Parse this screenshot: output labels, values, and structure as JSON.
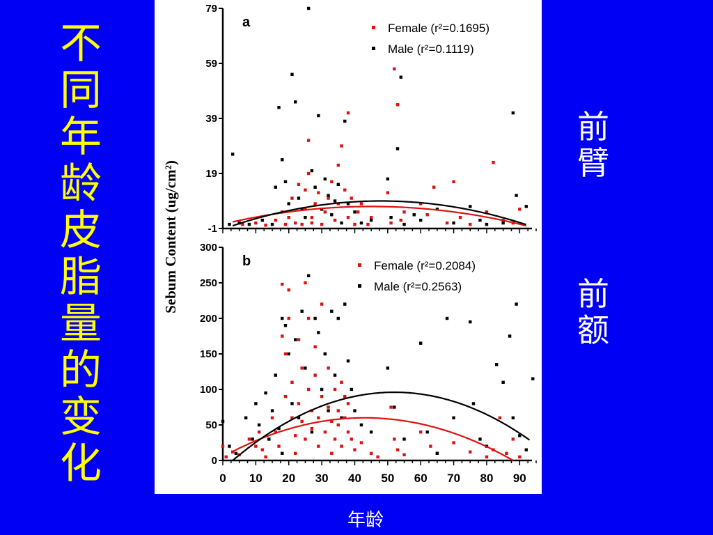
{
  "slide": {
    "title_vertical": "不同年龄皮脂量的变化",
    "side_label_1": "前臂",
    "side_label_2": "前额",
    "bottom_label": "年龄"
  },
  "colors": {
    "background": "#0000f5",
    "title": "#ffff00",
    "female": "#e01010",
    "male": "#000000"
  },
  "chart_data": [
    {
      "type": "scatter",
      "panel_label": "a",
      "ylabel": "Sebum Content (ug/cm²)",
      "ylim": [
        -1,
        79
      ],
      "yticks": [
        -1,
        19,
        39,
        59,
        79
      ],
      "xlim": [
        0,
        95
      ],
      "grid": false,
      "legend_placement": "top-right",
      "series": [
        {
          "name": "Female",
          "legend_label": "Female (r²=0.1695)",
          "color": "#e01010",
          "fit": {
            "x_start": 3,
            "x_end": 92,
            "peak_x": 45,
            "peak_y": 7
          },
          "points": [
            [
              6,
              0.5
            ],
            [
              10,
              1
            ],
            [
              13,
              0.2
            ],
            [
              16,
              2
            ],
            [
              18,
              5
            ],
            [
              19,
              0.5
            ],
            [
              20,
              3
            ],
            [
              21,
              10
            ],
            [
              22,
              1
            ],
            [
              23,
              15
            ],
            [
              24,
              0.5
            ],
            [
              25,
              6
            ],
            [
              25,
              13
            ],
            [
              26,
              31
            ],
            [
              26,
              19
            ],
            [
              27,
              3
            ],
            [
              27,
              1
            ],
            [
              28,
              8
            ],
            [
              29,
              12
            ],
            [
              30,
              0.5
            ],
            [
              31,
              5
            ],
            [
              32,
              10
            ],
            [
              33,
              16
            ],
            [
              34,
              2
            ],
            [
              35,
              22
            ],
            [
              35,
              8
            ],
            [
              36,
              29
            ],
            [
              37,
              13
            ],
            [
              38,
              41
            ],
            [
              38,
              3
            ],
            [
              39,
              10
            ],
            [
              40,
              0.5
            ],
            [
              41,
              5
            ],
            [
              42,
              8
            ],
            [
              44,
              0.5
            ],
            [
              45,
              3
            ],
            [
              50,
              12
            ],
            [
              51,
              1
            ],
            [
              52,
              57
            ],
            [
              53,
              44
            ],
            [
              54,
              2
            ],
            [
              55,
              5
            ],
            [
              60,
              8
            ],
            [
              62,
              4
            ],
            [
              64,
              14
            ],
            [
              68,
              1
            ],
            [
              70,
              16
            ],
            [
              72,
              3
            ],
            [
              75,
              0.5
            ],
            [
              80,
              5
            ],
            [
              82,
              23
            ],
            [
              85,
              2
            ],
            [
              88,
              1
            ],
            [
              90,
              6
            ]
          ]
        },
        {
          "name": "Male",
          "legend_label": "Male (r²=0.1119)",
          "color": "#000000",
          "fit": {
            "x_start": 3,
            "x_end": 92,
            "peak_x": 48,
            "peak_y": 9
          },
          "points": [
            [
              2,
              0.5
            ],
            [
              3,
              26
            ],
            [
              5,
              1
            ],
            [
              8,
              0.5
            ],
            [
              12,
              2
            ],
            [
              15,
              0.5
            ],
            [
              16,
              14
            ],
            [
              17,
              43
            ],
            [
              18,
              24
            ],
            [
              19,
              16
            ],
            [
              20,
              8
            ],
            [
              21,
              55
            ],
            [
              22,
              45
            ],
            [
              23,
              10
            ],
            [
              24,
              6
            ],
            [
              25,
              3
            ],
            [
              26,
              79
            ],
            [
              27,
              20
            ],
            [
              28,
              14
            ],
            [
              29,
              40
            ],
            [
              30,
              6
            ],
            [
              31,
              17
            ],
            [
              32,
              11
            ],
            [
              33,
              4
            ],
            [
              34,
              9
            ],
            [
              35,
              15
            ],
            [
              36,
              1
            ],
            [
              37,
              38
            ],
            [
              38,
              8
            ],
            [
              40,
              5
            ],
            [
              42,
              1
            ],
            [
              45,
              2
            ],
            [
              50,
              17
            ],
            [
              51,
              3
            ],
            [
              53,
              28
            ],
            [
              54,
              54
            ],
            [
              55,
              0.5
            ],
            [
              58,
              4
            ],
            [
              60,
              2
            ],
            [
              65,
              6
            ],
            [
              70,
              1
            ],
            [
              75,
              7
            ],
            [
              78,
              2
            ],
            [
              80,
              0.5
            ],
            [
              85,
              1
            ],
            [
              88,
              41
            ],
            [
              89,
              11
            ],
            [
              92,
              7
            ]
          ]
        }
      ]
    },
    {
      "type": "scatter",
      "panel_label": "b",
      "ylabel": "Sebum Content (ug/cm²)",
      "ylim": [
        0,
        300
      ],
      "yticks": [
        0,
        50,
        100,
        150,
        200,
        250,
        300
      ],
      "xlim": [
        0,
        95
      ],
      "xticks": [
        0,
        10,
        20,
        30,
        40,
        50,
        60,
        70,
        80,
        90
      ],
      "grid": false,
      "legend_placement": "top-right",
      "series": [
        {
          "name": "Female",
          "legend_label": "Female (r²=0.2084)",
          "color": "#e01010",
          "fit": {
            "x_start": 3,
            "x_end": 88,
            "peak_x": 43,
            "peak_y": 60
          },
          "points": [
            [
              0,
              20
            ],
            [
              1,
              5
            ],
            [
              3,
              12
            ],
            [
              5,
              8
            ],
            [
              8,
              30
            ],
            [
              10,
              20
            ],
            [
              11,
              40
            ],
            [
              12,
              15
            ],
            [
              13,
              5
            ],
            [
              14,
              30
            ],
            [
              15,
              60
            ],
            [
              16,
              40
            ],
            [
              17,
              20
            ],
            [
              18,
              248
            ],
            [
              18,
              175
            ],
            [
              19,
              90
            ],
            [
              19,
              150
            ],
            [
              20,
              200
            ],
            [
              20,
              240
            ],
            [
              21,
              110
            ],
            [
              21,
              60
            ],
            [
              22,
              35
            ],
            [
              22,
              10
            ],
            [
              23,
              80
            ],
            [
              23,
              170
            ],
            [
              24,
              130
            ],
            [
              24,
              55
            ],
            [
              25,
              30
            ],
            [
              25,
              250
            ],
            [
              26,
              100
            ],
            [
              26,
              200
            ],
            [
              27,
              70
            ],
            [
              27,
              45
            ],
            [
              28,
              120
            ],
            [
              28,
              160
            ],
            [
              29,
              60
            ],
            [
              29,
              20
            ],
            [
              30,
              90
            ],
            [
              30,
              220
            ],
            [
              31,
              40
            ],
            [
              31,
              150
            ],
            [
              32,
              75
            ],
            [
              32,
              130
            ],
            [
              33,
              55
            ],
            [
              33,
              10
            ],
            [
              34,
              100
            ],
            [
              34,
              30
            ],
            [
              35,
              70
            ],
            [
              35,
              50
            ],
            [
              36,
              110
            ],
            [
              36,
              20
            ],
            [
              37,
              60
            ],
            [
              37,
              90
            ],
            [
              38,
              40
            ],
            [
              38,
              80
            ],
            [
              39,
              30
            ],
            [
              40,
              15
            ],
            [
              42,
              25
            ],
            [
              45,
              10
            ],
            [
              47,
              5
            ],
            [
              51,
              75
            ],
            [
              52,
              30
            ],
            [
              53,
              15
            ],
            [
              55,
              8
            ],
            [
              60,
              40
            ],
            [
              63,
              20
            ],
            [
              65,
              10
            ],
            [
              70,
              25
            ],
            [
              75,
              12
            ],
            [
              80,
              5
            ],
            [
              82,
              15
            ],
            [
              84,
              60
            ],
            [
              86,
              10
            ],
            [
              88,
              30
            ],
            [
              90,
              5
            ]
          ]
        },
        {
          "name": "Male",
          "legend_label": "Male (r²=0.2563)",
          "color": "#000000",
          "fit": {
            "x_start": 3,
            "x_end": 93,
            "peak_x": 52,
            "peak_y": 96
          },
          "points": [
            [
              0,
              55
            ],
            [
              2,
              20
            ],
            [
              4,
              10
            ],
            [
              7,
              60
            ],
            [
              9,
              30
            ],
            [
              10,
              80
            ],
            [
              11,
              50
            ],
            [
              13,
              95
            ],
            [
              14,
              30
            ],
            [
              15,
              70
            ],
            [
              16,
              120
            ],
            [
              17,
              45
            ],
            [
              18,
              200
            ],
            [
              18,
              10
            ],
            [
              19,
              190
            ],
            [
              20,
              150
            ],
            [
              21,
              80
            ],
            [
              22,
              170
            ],
            [
              23,
              60
            ],
            [
              24,
              210
            ],
            [
              25,
              130
            ],
            [
              26,
              260
            ],
            [
              27,
              40
            ],
            [
              28,
              200
            ],
            [
              29,
              180
            ],
            [
              30,
              100
            ],
            [
              31,
              150
            ],
            [
              32,
              70
            ],
            [
              33,
              210
            ],
            [
              34,
              120
            ],
            [
              35,
              200
            ],
            [
              36,
              60
            ],
            [
              37,
              220
            ],
            [
              38,
              140
            ],
            [
              39,
              100
            ],
            [
              40,
              70
            ],
            [
              42,
              50
            ],
            [
              45,
              40
            ],
            [
              50,
              130
            ],
            [
              52,
              75
            ],
            [
              55,
              30
            ],
            [
              60,
              165
            ],
            [
              62,
              40
            ],
            [
              65,
              10
            ],
            [
              68,
              200
            ],
            [
              70,
              60
            ],
            [
              75,
              195
            ],
            [
              76,
              80
            ],
            [
              78,
              30
            ],
            [
              80,
              20
            ],
            [
              83,
              135
            ],
            [
              85,
              110
            ],
            [
              87,
              175
            ],
            [
              88,
              60
            ],
            [
              89,
              220
            ],
            [
              90,
              35
            ],
            [
              92,
              15
            ],
            [
              94,
              115
            ]
          ]
        }
      ]
    }
  ]
}
